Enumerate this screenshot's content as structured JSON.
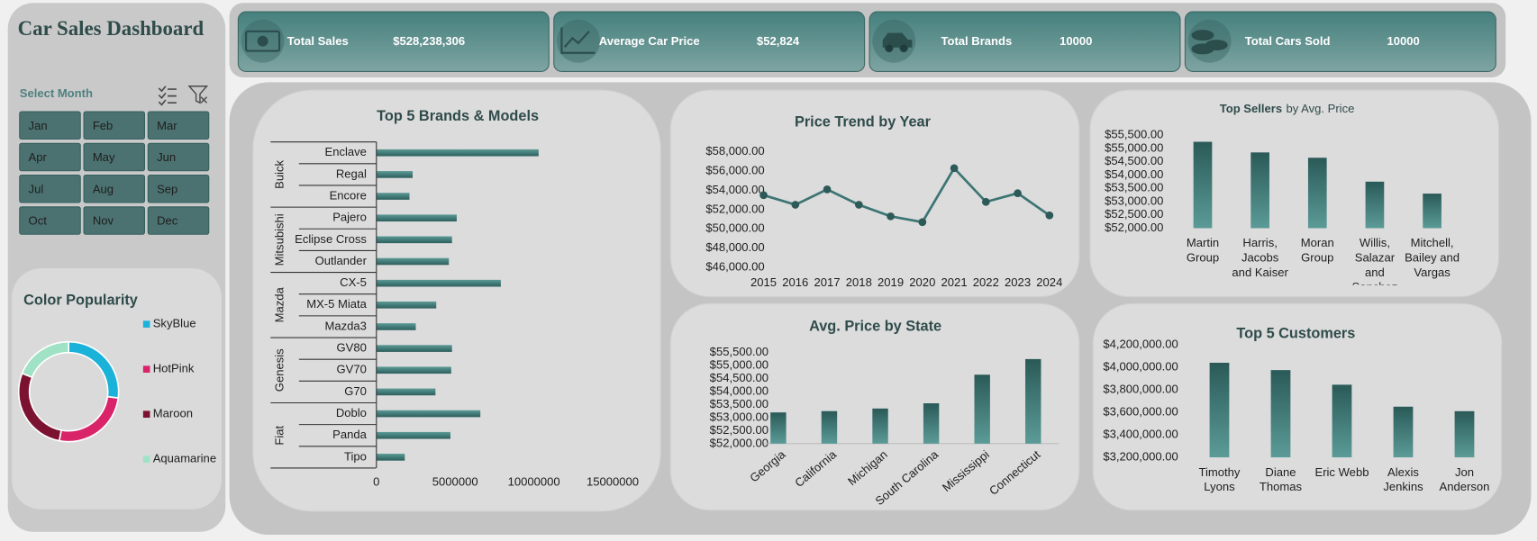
{
  "header": {
    "title": "Car Sales Dashboard"
  },
  "month_filter": {
    "label": "Select Month",
    "months": [
      "Jan",
      "Feb",
      "Mar",
      "Apr",
      "May",
      "Jun",
      "Jul",
      "Aug",
      "Sep",
      "Oct",
      "Nov",
      "Dec"
    ]
  },
  "kpis": [
    {
      "label": "Total Sales",
      "value": "$528,238,306"
    },
    {
      "label": "Average Car Price",
      "value": "$52,824"
    },
    {
      "label": "Total Brands",
      "value": "10000"
    },
    {
      "label": "Total Cars Sold",
      "value": "10000"
    }
  ],
  "chart_data": [
    {
      "type": "bar",
      "orientation": "horizontal",
      "title": "Top 5 Brands & Models",
      "color": "#3d7371",
      "groups": [
        {
          "name": "Buick",
          "categories": [
            "Enclave",
            "Regal",
            "Encore"
          ],
          "values": [
            10300000,
            2300000,
            2100000
          ]
        },
        {
          "name": "Mitsubishi",
          "categories": [
            "Pajero",
            "Eclipse Cross",
            "Outlander"
          ],
          "values": [
            5100000,
            4800000,
            4600000
          ]
        },
        {
          "name": "Mazda",
          "categories": [
            "CX-5",
            "MX-5 Miata",
            "Mazda3"
          ],
          "values": [
            7900000,
            3800000,
            2500000
          ]
        },
        {
          "name": "Genesis",
          "categories": [
            "GV80",
            "GV70",
            "G70"
          ],
          "values": [
            4800000,
            4750000,
            3750000
          ]
        },
        {
          "name": "Fiat",
          "categories": [
            "Doblo",
            "Panda",
            "Tipo"
          ],
          "values": [
            6600000,
            4700000,
            1800000
          ]
        }
      ],
      "xlim": [
        0,
        15000000
      ],
      "xticks": [
        0,
        5000000,
        10000000,
        15000000
      ]
    },
    {
      "type": "line",
      "title": "Price Trend by Year",
      "color": "#3c7573",
      "categories": [
        "2015",
        "2016",
        "2017",
        "2018",
        "2019",
        "2020",
        "2021",
        "2022",
        "2023",
        "2024"
      ],
      "values": [
        53500,
        52500,
        54100,
        52500,
        51300,
        50700,
        56300,
        52800,
        53700,
        51400
      ],
      "ylim": [
        46000,
        58000
      ],
      "yticks": [
        {
          "value": 46000,
          "label": "$46,000.00"
        },
        {
          "value": 48000,
          "label": "$48,000.00"
        },
        {
          "value": 50000,
          "label": "$50,000.00"
        },
        {
          "value": 52000,
          "label": "$52,000.00"
        },
        {
          "value": 54000,
          "label": "$54,000.00"
        },
        {
          "value": 56000,
          "label": "$56,000.00"
        },
        {
          "value": 58000,
          "label": "$58,000.00"
        }
      ]
    },
    {
      "type": "bar",
      "title": "Top Sellers",
      "subtitle": "by Avg. Price",
      "color": "#3d7371",
      "categories": [
        "Martin Group",
        "Harris, Jacobs and Kaiser",
        "Moran Group",
        "Willis, Salazar and Sanchez",
        "Mitchell, Bailey and Vargas"
      ],
      "values": [
        55250,
        54850,
        54650,
        53750,
        53300
      ],
      "ylim": [
        52000,
        55500
      ],
      "yticks": [
        {
          "value": 52000,
          "label": "$52,000.00"
        },
        {
          "value": 52500,
          "label": "$52,500.00"
        },
        {
          "value": 53000,
          "label": "$53,000.00"
        },
        {
          "value": 53500,
          "label": "$53,500.00"
        },
        {
          "value": 54000,
          "label": "$54,000.00"
        },
        {
          "value": 54500,
          "label": "$54,500.00"
        },
        {
          "value": 55000,
          "label": "$55,000.00"
        },
        {
          "value": 55500,
          "label": "$55,500.00"
        }
      ]
    },
    {
      "type": "bar",
      "title": "Avg. Price by State",
      "color": "#3d7371",
      "categories": [
        "Georgia",
        "California",
        "Michigan",
        "South Carolina",
        "Mississippi",
        "Connecticut"
      ],
      "values": [
        53200,
        53250,
        53350,
        53550,
        54650,
        55250
      ],
      "ylim": [
        52000,
        55500
      ],
      "yticks": [
        {
          "value": 52000,
          "label": "$52,000.00"
        },
        {
          "value": 52500,
          "label": "$52,500.00"
        },
        {
          "value": 53000,
          "label": "$53,000.00"
        },
        {
          "value": 53500,
          "label": "$53,500.00"
        },
        {
          "value": 54000,
          "label": "$54,000.00"
        },
        {
          "value": 54500,
          "label": "$54,500.00"
        },
        {
          "value": 55000,
          "label": "$55,000.00"
        },
        {
          "value": 55500,
          "label": "$55,500.00"
        }
      ]
    },
    {
      "type": "bar",
      "title": "Top 5 Customers",
      "color": "#3d7371",
      "categories": [
        "Timothy Lyons",
        "Diane Thomas",
        "Eric Webb",
        "Alexis Jenkins",
        "Jon Anderson"
      ],
      "values": [
        4040000,
        3975000,
        3845000,
        3650000,
        3610000
      ],
      "ylim": [
        3200000,
        4200000
      ],
      "yticks": [
        {
          "value": 3200000,
          "label": "$3,200,000.00"
        },
        {
          "value": 3400000,
          "label": "$3,400,000.00"
        },
        {
          "value": 3600000,
          "label": "$3,600,000.00"
        },
        {
          "value": 3800000,
          "label": "$3,800,000.00"
        },
        {
          "value": 4000000,
          "label": "$4,000,000.00"
        },
        {
          "value": 4200000,
          "label": "$4,200,000.00"
        }
      ]
    },
    {
      "type": "donut",
      "title": "Color Popularity",
      "legend": "right",
      "series": [
        {
          "name": "SkyBlue",
          "color": "#1ab2d8",
          "values": [
            27
          ]
        },
        {
          "name": "HotPink",
          "color": "#d9246a",
          "values": [
            26
          ]
        },
        {
          "name": "Maroon",
          "color": "#7c1232",
          "values": [
            28
          ]
        },
        {
          "name": "Aquamarine",
          "color": "#9fe2c6",
          "values": [
            19
          ]
        }
      ]
    }
  ]
}
